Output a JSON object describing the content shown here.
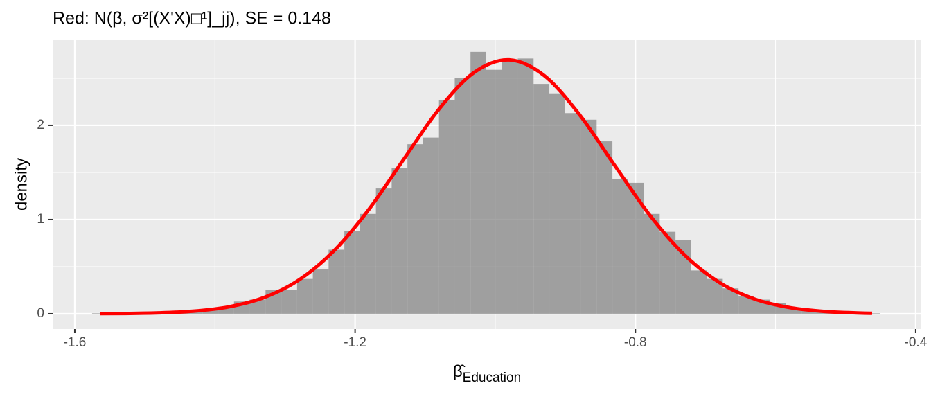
{
  "chart_data": {
    "type": "histogram",
    "title": "Red: N(β, σ²[(X'X)□¹]_jj), SE = 0.148",
    "x_label": "β̂",
    "x_label_subscript": "Education",
    "y_label": "density",
    "bins": [
      -1.5753,
      -1.5528,
      -1.5303,
      -1.5078,
      -1.4853,
      -1.4628,
      -1.4403,
      -1.4178,
      -1.3953,
      -1.3728,
      -1.3503,
      -1.3278,
      -1.3053,
      -1.2828,
      -1.2603,
      -1.2378,
      -1.2153,
      -1.1928,
      -1.1703,
      -1.1478,
      -1.1253,
      -1.1028,
      -1.0803,
      -1.0578,
      -1.0353,
      -1.0128,
      -0.9903,
      -0.9678,
      -0.9453,
      -0.9228,
      -0.9003,
      -0.8778,
      -0.8553,
      -0.8328,
      -0.8103,
      -0.7878,
      -0.7653,
      -0.7428,
      -0.7203,
      -0.6978,
      -0.6753,
      -0.6528,
      -0.6303,
      -0.6078,
      -0.5853,
      -0.5628,
      -0.5403,
      -0.5178,
      -0.4953,
      -0.4728,
      -0.4503
    ],
    "values": [
      0.005,
      0,
      0,
      0,
      0,
      0.01,
      0.02,
      0.04,
      0.07,
      0.13,
      0.15,
      0.25,
      0.25,
      0.37,
      0.47,
      0.68,
      0.88,
      1.06,
      1.33,
      1.55,
      1.8,
      1.87,
      2.27,
      2.5,
      2.78,
      2.59,
      2.68,
      2.71,
      2.44,
      2.34,
      2.13,
      2.06,
      1.83,
      1.43,
      1.39,
      1.06,
      0.87,
      0.78,
      0.46,
      0.37,
      0.27,
      0.19,
      0.15,
      0.11,
      0.06,
      0.04,
      0.03,
      0.02,
      0.01,
      0.005
    ],
    "color": "#7f7f7f",
    "alpha": 0.7,
    "curve": {
      "color": "#ff0000",
      "x": [
        -1.5635,
        -1.53,
        -1.48,
        -1.43,
        -1.38,
        -1.33,
        -1.28,
        -1.23,
        -1.18,
        -1.13,
        -1.08,
        -1.03,
        -0.98,
        -0.93,
        -0.88,
        -0.83,
        -0.78,
        -0.73,
        -0.68,
        -0.63,
        -0.58,
        -0.53,
        -0.48,
        -0.4622
      ],
      "values": [
        0.0012,
        0.0029,
        0.0096,
        0.0282,
        0.0739,
        0.1725,
        0.3598,
        0.6696,
        1.1114,
        1.6465,
        2.175,
        2.5629,
        2.695,
        2.5281,
        2.1157,
        1.5796,
        1.0518,
        0.6254,
        0.3315,
        0.1566,
        0.0662,
        0.0249,
        0.0084,
        0.0055
      ]
    },
    "xlim": [
      -1.6316,
      -0.392
    ],
    "ylim": [
      -0.162,
      2.904
    ],
    "xticks": [
      -1.6,
      -1.2,
      -0.8,
      -0.4
    ],
    "yticks": [
      0,
      1,
      2
    ],
    "grid": true
  }
}
